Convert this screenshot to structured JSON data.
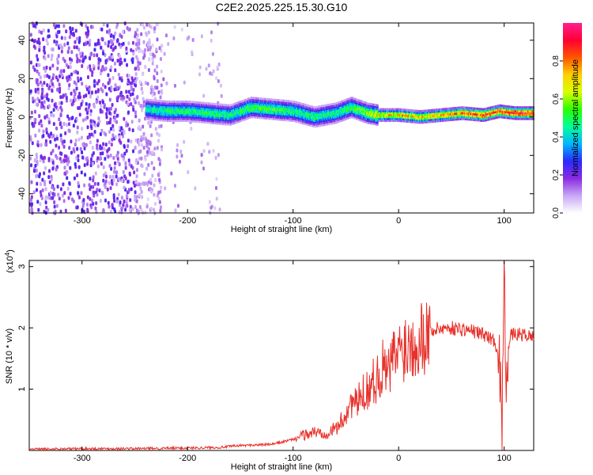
{
  "title": "C2E2.2025.225.15.30.G10",
  "chart_data": [
    {
      "type": "heatmap",
      "xlabel": "Height of straight line (km)",
      "ylabel": "Frequency (Hz)",
      "xlim": [
        -350,
        128
      ],
      "ylim": [
        -50,
        49
      ],
      "xticks": [
        -300,
        -200,
        -100,
        0,
        100
      ],
      "yticks": [
        -40,
        -20,
        0,
        20,
        40
      ],
      "colorbar": {
        "label": "Normalized spectral amplitude",
        "range": [
          0,
          1
        ],
        "ticks": [
          "0.0",
          "0.2",
          "0.4",
          "0.6",
          "0.8"
        ],
        "colormap": [
          "#ffffff",
          "#c8a8f5",
          "#8a2be2",
          "#2a2aff",
          "#00b7ff",
          "#00ff9a",
          "#2bff00",
          "#d8ff00",
          "#ffd000",
          "#ff5500",
          "#ff0033",
          "#ff2090"
        ]
      },
      "signal_track": {
        "x": [
          -240,
          -220,
          -200,
          -180,
          -160,
          -140,
          -120,
          -100,
          -80,
          -60,
          -45,
          -30,
          -20,
          0,
          20,
          40,
          60,
          80,
          95,
          110,
          128
        ],
        "freq": [
          4,
          3,
          3,
          2,
          1,
          5,
          4,
          3,
          0,
          2,
          5,
          2,
          1,
          1,
          0,
          1,
          2,
          1,
          3,
          2,
          2
        ],
        "amplitude": [
          0.45,
          0.5,
          0.5,
          0.5,
          0.5,
          0.55,
          0.55,
          0.5,
          0.5,
          0.5,
          0.55,
          0.6,
          0.7,
          0.75,
          0.75,
          0.8,
          0.85,
          0.9,
          0.9,
          0.95,
          0.95
        ]
      },
      "noise_region": {
        "x_range": [
          -350,
          -225
        ],
        "f_range": [
          -50,
          49
        ],
        "amplitude": 0.2
      }
    },
    {
      "type": "line",
      "xlabel": "Height of straight line (km)",
      "ylabel": "SNR (10 * v/v)",
      "scale_label": "(x10",
      "scale_exp": "4",
      "xlim": [
        -350,
        128
      ],
      "ylim": [
        0,
        3.1
      ],
      "xticks": [
        -300,
        -200,
        -100,
        0,
        100
      ],
      "yticks": [
        1,
        2,
        3
      ],
      "color": "#e8302a",
      "series": [
        {
          "x": [
            -350,
            -300,
            -250,
            -200,
            -170,
            -150,
            -120,
            -100,
            -90,
            -80,
            -70,
            -60,
            -55,
            -50,
            -45,
            -40,
            -35,
            -30,
            -25,
            -20,
            -15,
            -10,
            -5,
            0,
            5,
            10,
            15,
            20,
            25,
            30,
            35,
            40,
            50,
            60,
            70,
            80,
            85,
            90,
            95,
            98,
            100,
            102,
            105,
            110,
            120,
            128
          ],
          "y": [
            0.02,
            0.03,
            0.03,
            0.04,
            0.05,
            0.08,
            0.1,
            0.18,
            0.25,
            0.3,
            0.28,
            0.35,
            0.45,
            0.6,
            0.8,
            0.75,
            0.9,
            1.0,
            1.1,
            1.2,
            1.35,
            1.25,
            1.5,
            1.6,
            1.7,
            1.75,
            1.8,
            1.85,
            1.9,
            1.95,
            1.97,
            2.0,
            2.0,
            1.98,
            1.95,
            1.9,
            1.85,
            1.8,
            1.6,
            0.4,
            2.9,
            1.3,
            1.85,
            1.9,
            1.88,
            1.85
          ]
        }
      ]
    }
  ]
}
